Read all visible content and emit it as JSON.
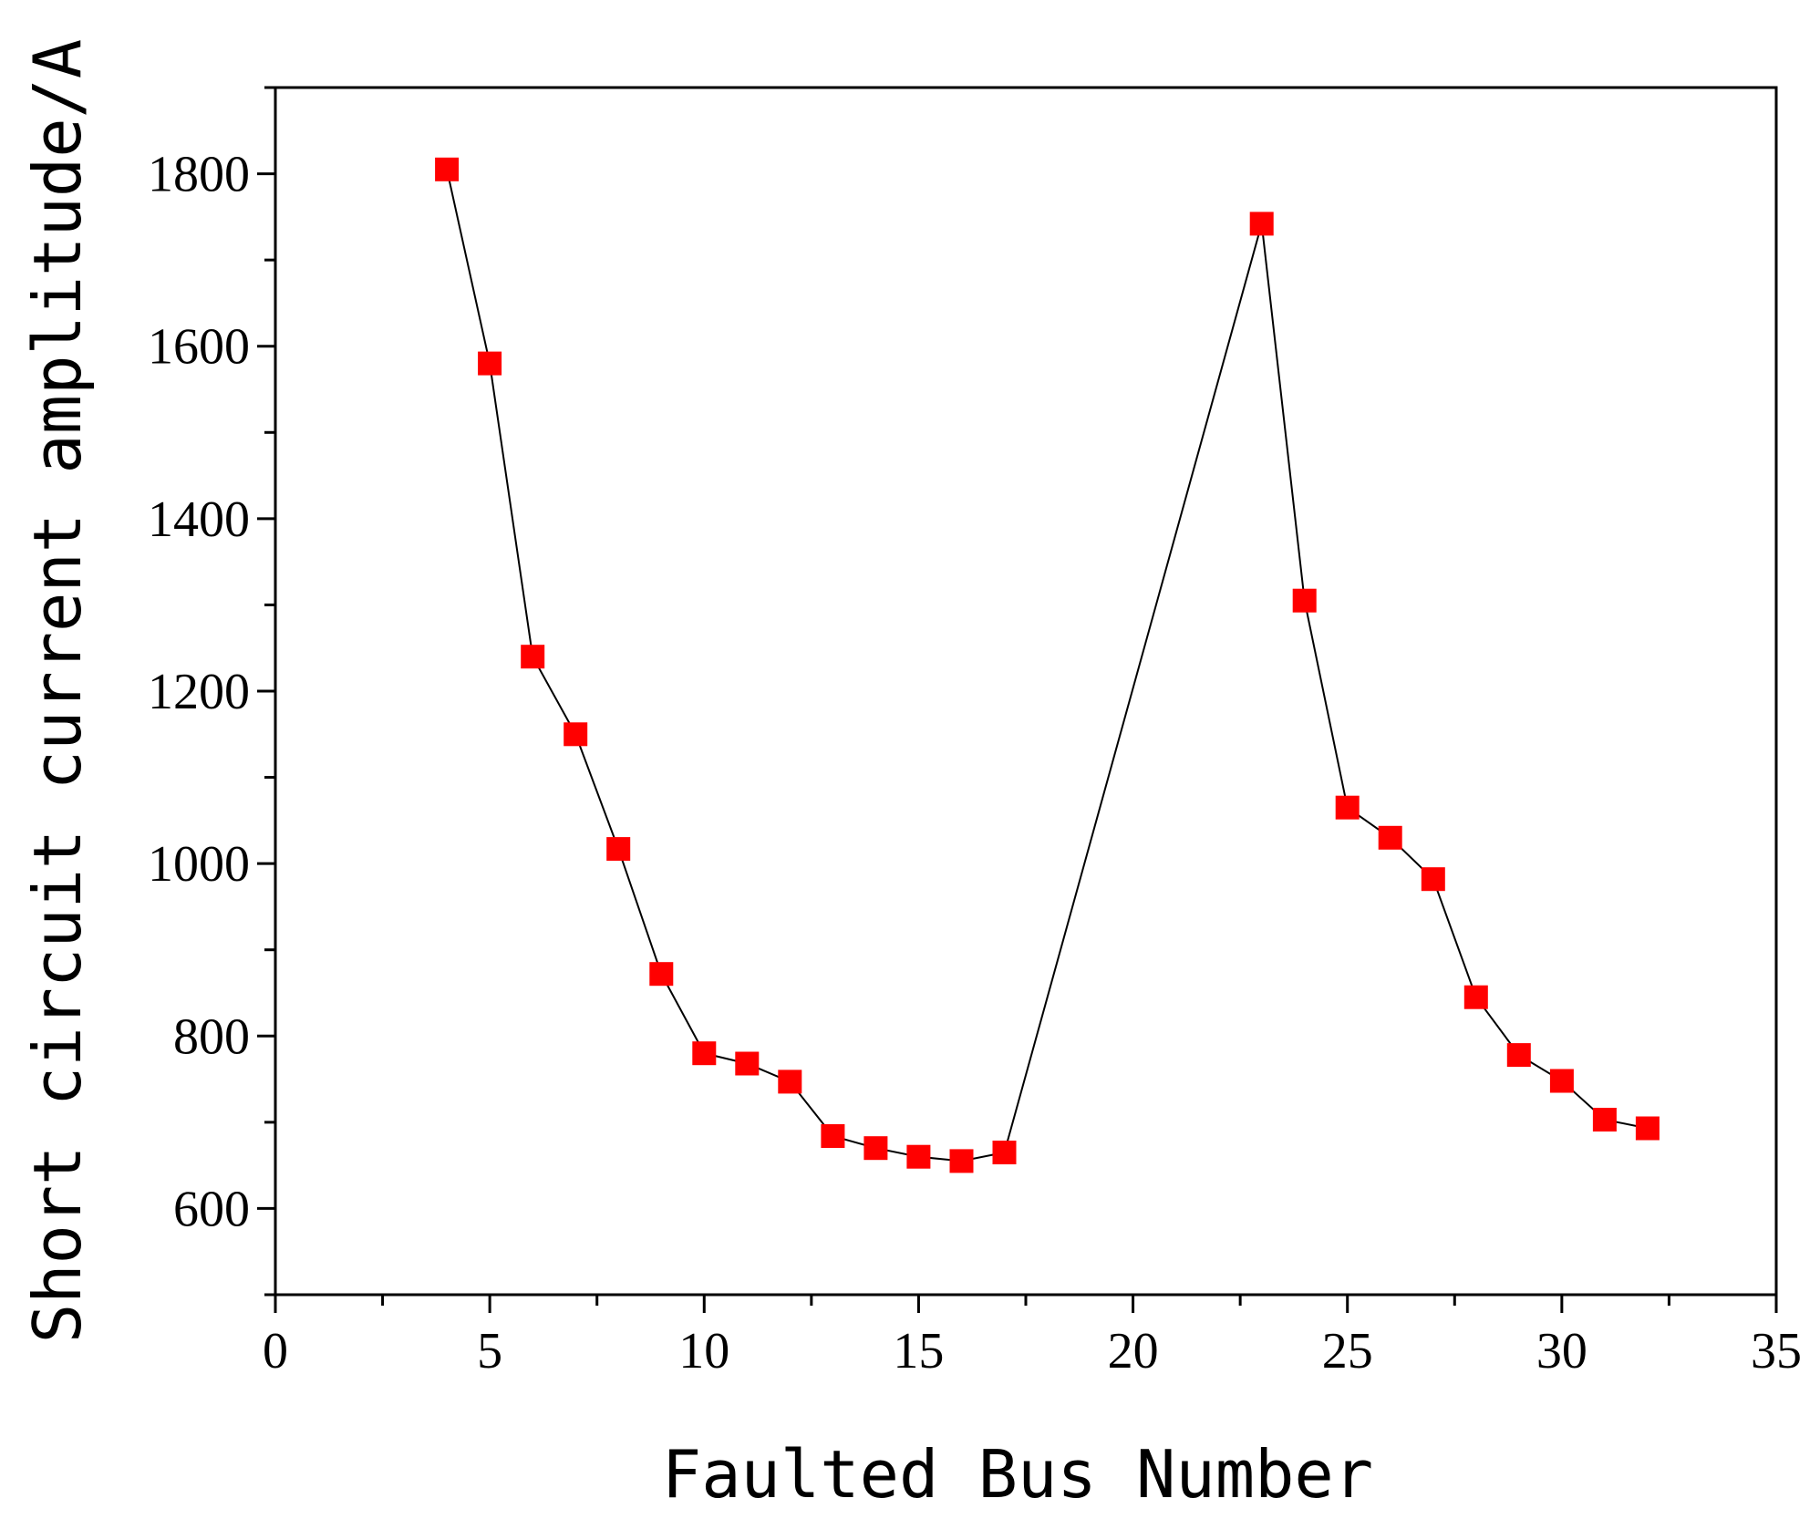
{
  "chart_data": {
    "type": "line",
    "title": "",
    "xlabel": "Faulted Bus Number",
    "ylabel": "Short circuit current amplitude/A",
    "xlim": [
      0,
      35
    ],
    "ylim": [
      500,
      1900
    ],
    "x_ticks": [
      0,
      5,
      10,
      15,
      20,
      25,
      30,
      35
    ],
    "x_tick_labels": [
      "0",
      "5",
      "10",
      "15",
      "20",
      "25",
      "30",
      "35"
    ],
    "y_ticks": [
      600,
      800,
      1000,
      1200,
      1400,
      1600,
      1800
    ],
    "y_tick_labels": [
      "600",
      "800",
      "1000",
      "1200",
      "1400",
      "1600",
      "1800"
    ],
    "grid": false,
    "legend": "none",
    "marker": "square",
    "marker_color": "#ff0000",
    "line_color": "#000000",
    "series": [
      {
        "x": [
          4,
          5,
          6,
          7,
          8,
          9,
          10,
          11,
          12,
          13,
          14,
          15,
          16,
          17,
          23,
          24,
          25,
          26,
          27,
          28,
          29,
          30,
          31,
          32
        ],
        "values": [
          1805,
          1580,
          1240,
          1150,
          1017,
          872,
          780,
          768,
          747,
          684,
          670,
          660,
          655,
          665,
          1742,
          1305,
          1065,
          1030,
          982,
          845,
          778,
          748,
          703,
          693
        ]
      }
    ]
  }
}
